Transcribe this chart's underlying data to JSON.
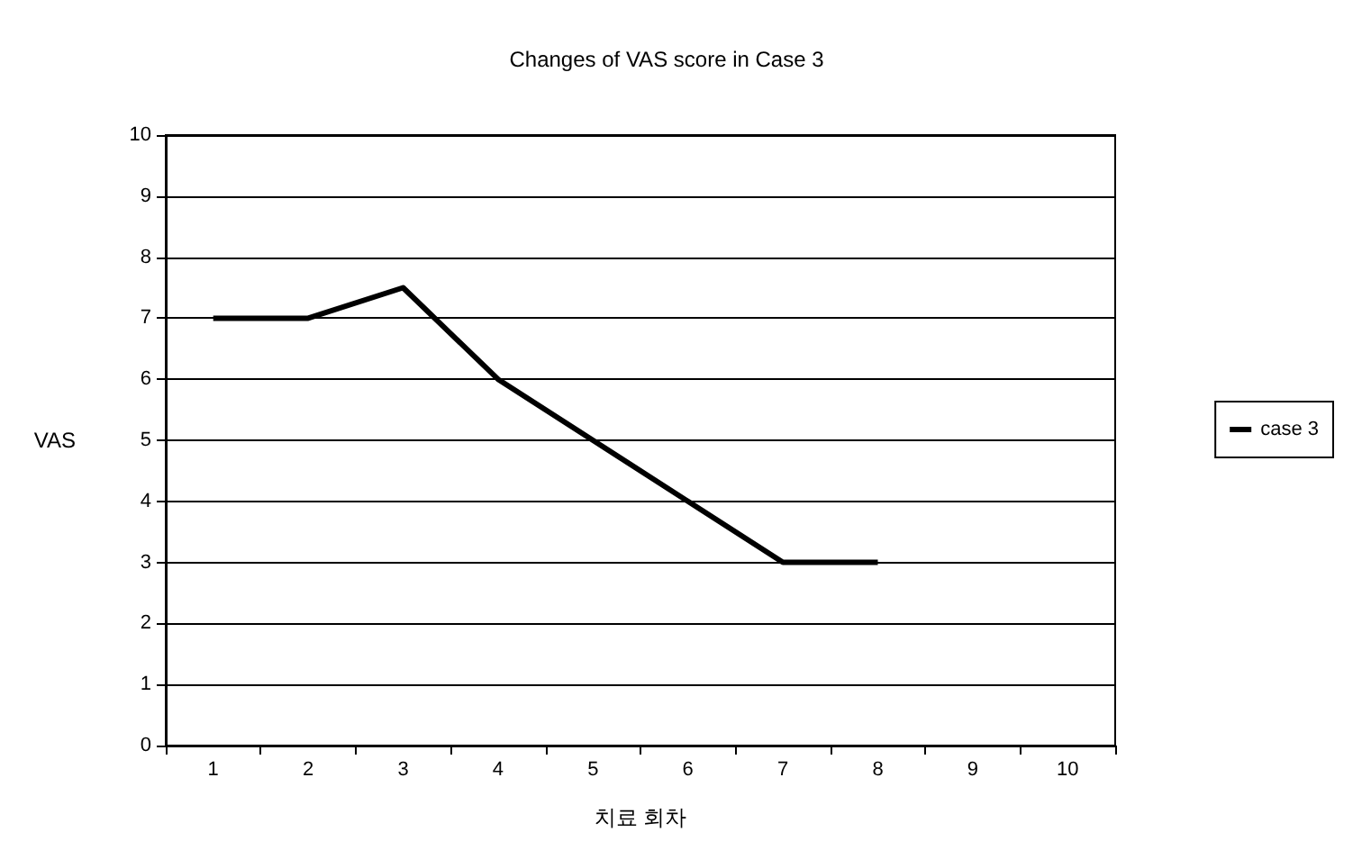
{
  "chart_data": {
    "type": "line",
    "title": "Changes of VAS score in Case 3",
    "xlabel": "치료 회차",
    "ylabel": "VAS",
    "categories": [
      "1",
      "2",
      "3",
      "4",
      "5",
      "6",
      "7",
      "8",
      "9",
      "10"
    ],
    "series": [
      {
        "name": "case 3",
        "color": "#000000",
        "values": [
          7,
          7,
          7.5,
          6,
          5,
          4,
          3,
          3,
          null,
          null
        ]
      }
    ],
    "ylim": [
      0,
      10
    ],
    "yticks": [
      0,
      1,
      2,
      3,
      4,
      5,
      6,
      7,
      8,
      9,
      10
    ],
    "grid": "y",
    "legend": "right",
    "marker": "none",
    "line_style": "solid"
  }
}
